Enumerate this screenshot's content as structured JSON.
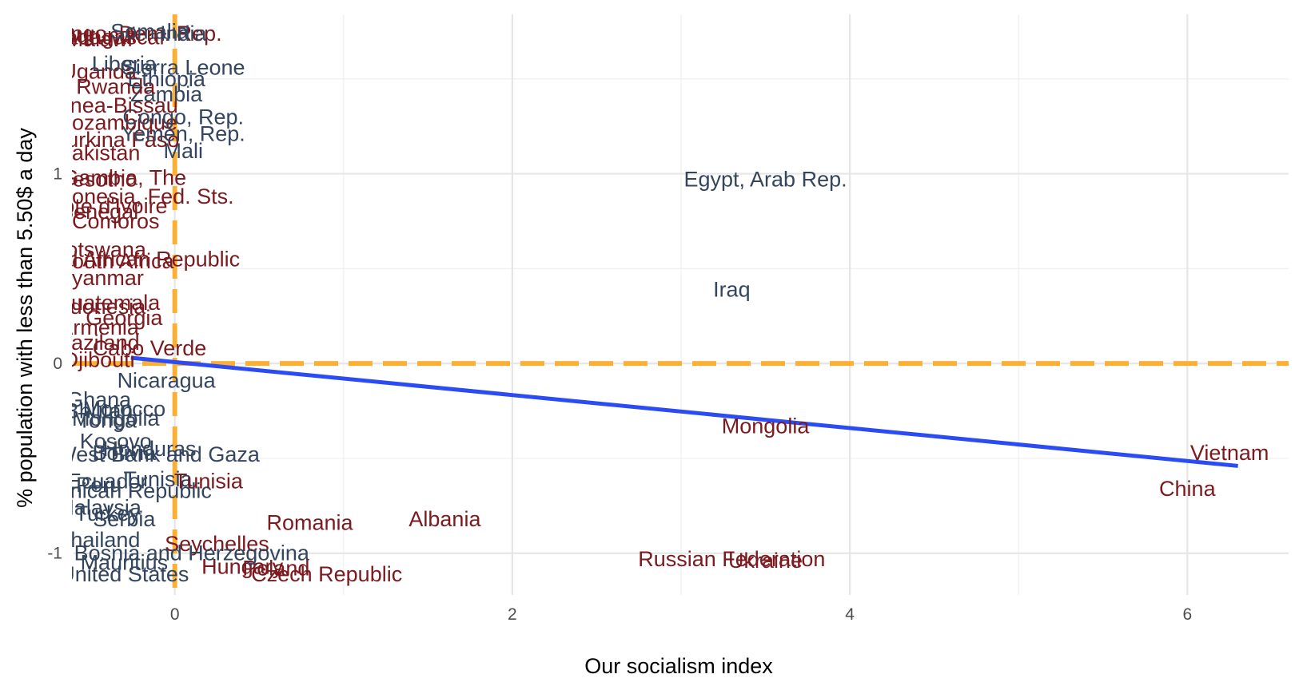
{
  "chart_data": {
    "type": "scatter",
    "title": "",
    "xlabel": "Our socialism index",
    "ylabel": "% population with less than 5.50$ a day",
    "xlim": [
      -0.6,
      6.6
    ],
    "ylim": [
      -1.22,
      1.84
    ],
    "x_ticks": [
      0,
      2,
      4,
      6
    ],
    "y_ticks": [
      -1,
      0,
      1
    ],
    "x_tick_labels": [
      "0",
      "2",
      "4",
      "6"
    ],
    "y_tick_labels": [
      "-1",
      "0",
      "1"
    ],
    "grid": true,
    "legend": "none",
    "colors": {
      "above_poverty_mean": "#7b1a1f",
      "below_poverty_mean": "#34465f",
      "reference_lines": "#fbb034",
      "fit_line": "#2b4cf4"
    },
    "reference_lines": {
      "x": 0,
      "y": 0
    },
    "fit_line": {
      "x": [
        -0.26,
        6.3
      ],
      "y": [
        0.03,
        -0.54
      ]
    },
    "labeled_points": [
      {
        "label": "Egypt, Arab Rep.",
        "x": 3.5,
        "y": 0.97,
        "group": "below"
      },
      {
        "label": "Iraq",
        "x": 3.3,
        "y": 0.39,
        "group": "below"
      },
      {
        "label": "Mongolia",
        "x": 3.5,
        "y": -0.33,
        "group": "above"
      },
      {
        "label": "Vietnam",
        "x": 6.25,
        "y": -0.47,
        "group": "above"
      },
      {
        "label": "China",
        "x": 6.0,
        "y": -0.66,
        "group": "above"
      },
      {
        "label": "Romania",
        "x": 0.8,
        "y": -0.84,
        "group": "above"
      },
      {
        "label": "Albania",
        "x": 1.6,
        "y": -0.82,
        "group": "above"
      },
      {
        "label": "Russian Federation",
        "x": 3.3,
        "y": -1.03,
        "group": "above"
      },
      {
        "label": "Ukraine",
        "x": 3.5,
        "y": -1.04,
        "group": "above"
      },
      {
        "label": "Poland",
        "x": 0.6,
        "y": -1.08,
        "group": "above"
      },
      {
        "label": "Hungary",
        "x": 0.4,
        "y": -1.07,
        "group": "above"
      },
      {
        "label": "Czech Republic",
        "x": 0.9,
        "y": -1.11,
        "group": "above"
      },
      {
        "label": "Seychelles",
        "x": 0.25,
        "y": -0.95,
        "group": "above"
      },
      {
        "label": "Bosnia and Herzegovina",
        "x": 0.1,
        "y": -1.0,
        "group": "below"
      },
      {
        "label": "Serbia",
        "x": -0.3,
        "y": -0.82,
        "group": "below"
      },
      {
        "label": "Thailand",
        "x": -0.45,
        "y": -0.93,
        "group": "below"
      },
      {
        "label": "Mauritius",
        "x": -0.3,
        "y": -1.05,
        "group": "below"
      },
      {
        "label": "United States",
        "x": -0.3,
        "y": -1.11,
        "group": "below"
      },
      {
        "label": "Malaysia",
        "x": -0.45,
        "y": -0.76,
        "group": "below"
      },
      {
        "label": "Turkey",
        "x": -0.4,
        "y": -0.79,
        "group": "below"
      },
      {
        "label": "Ecuador",
        "x": -0.4,
        "y": -0.62,
        "group": "below"
      },
      {
        "label": "Peru",
        "x": -0.45,
        "y": -0.64,
        "group": "below"
      },
      {
        "label": "Tunisia",
        "x": -0.1,
        "y": -0.61,
        "group": "below"
      },
      {
        "label": "Dominican Republic",
        "x": -0.35,
        "y": -0.67,
        "group": "below"
      },
      {
        "label": "Tunisia",
        "x": 0.2,
        "y": -0.62,
        "group": "above"
      },
      {
        "label": "Bolivia",
        "x": -0.3,
        "y": -0.47,
        "group": "below"
      },
      {
        "label": "West Bank and Gaza",
        "x": -0.1,
        "y": -0.48,
        "group": "below"
      },
      {
        "label": "Honduras",
        "x": -0.15,
        "y": -0.45,
        "group": "below"
      },
      {
        "label": "Kosovo",
        "x": -0.35,
        "y": -0.41,
        "group": "below"
      },
      {
        "label": "Mongolia",
        "x": -0.35,
        "y": -0.29,
        "group": "below"
      },
      {
        "label": "Tonga",
        "x": -0.4,
        "y": -0.3,
        "group": "below"
      },
      {
        "label": "Ghana",
        "x": -0.45,
        "y": -0.19,
        "group": "below"
      },
      {
        "label": "Morocco",
        "x": -0.3,
        "y": -0.24,
        "group": "below"
      },
      {
        "label": "Bhutan",
        "x": -0.45,
        "y": -0.25,
        "group": "below"
      },
      {
        "label": "Nicaragua",
        "x": -0.05,
        "y": -0.09,
        "group": "below"
      },
      {
        "label": "Djibouti",
        "x": -0.45,
        "y": 0.02,
        "group": "above"
      },
      {
        "label": "Cabo Verde",
        "x": -0.15,
        "y": 0.08,
        "group": "above"
      },
      {
        "label": "Swaziland",
        "x": -0.5,
        "y": 0.11,
        "group": "above"
      },
      {
        "label": "Armenia",
        "x": -0.45,
        "y": 0.19,
        "group": "above"
      },
      {
        "label": "Georgia",
        "x": -0.3,
        "y": 0.24,
        "group": "above"
      },
      {
        "label": "Indonesia",
        "x": -0.45,
        "y": 0.3,
        "group": "above"
      },
      {
        "label": "Guatemala",
        "x": -0.4,
        "y": 0.32,
        "group": "above"
      },
      {
        "label": "Myanmar",
        "x": -0.45,
        "y": 0.45,
        "group": "above"
      },
      {
        "label": "Central African Republic",
        "x": -0.3,
        "y": 0.55,
        "group": "above"
      },
      {
        "label": "South Africa",
        "x": -0.35,
        "y": 0.54,
        "group": "above"
      },
      {
        "label": "Botswana",
        "x": -0.45,
        "y": 0.6,
        "group": "above"
      },
      {
        "label": "Comoros",
        "x": -0.35,
        "y": 0.75,
        "group": "above"
      },
      {
        "label": "Senegal",
        "x": -0.45,
        "y": 0.8,
        "group": "above"
      },
      {
        "label": "Cote d'Ivoire",
        "x": -0.4,
        "y": 0.83,
        "group": "above"
      },
      {
        "label": "Micronesia, Fed. Sts.",
        "x": -0.25,
        "y": 0.88,
        "group": "above"
      },
      {
        "label": "Lesotho",
        "x": -0.45,
        "y": 0.97,
        "group": "above"
      },
      {
        "label": "Gambia, The",
        "x": -0.3,
        "y": 0.98,
        "group": "above"
      },
      {
        "label": "Pakistan",
        "x": -0.45,
        "y": 1.11,
        "group": "above"
      },
      {
        "label": "Mali",
        "x": 0.05,
        "y": 1.12,
        "group": "below"
      },
      {
        "label": "Burkina Faso",
        "x": -0.35,
        "y": 1.18,
        "group": "above"
      },
      {
        "label": "Yemen, Rep.",
        "x": 0.05,
        "y": 1.21,
        "group": "below"
      },
      {
        "label": "Mozambique",
        "x": -0.35,
        "y": 1.27,
        "group": "above"
      },
      {
        "label": "Congo, Rep.",
        "x": 0.05,
        "y": 1.3,
        "group": "below"
      },
      {
        "label": "Guinea-Bissau",
        "x": -0.4,
        "y": 1.36,
        "group": "above"
      },
      {
        "label": "Zambia",
        "x": -0.05,
        "y": 1.42,
        "group": "below"
      },
      {
        "label": "Rwanda",
        "x": -0.35,
        "y": 1.46,
        "group": "above"
      },
      {
        "label": "Ethiopia",
        "x": -0.05,
        "y": 1.5,
        "group": "below"
      },
      {
        "label": "Uganda",
        "x": -0.45,
        "y": 1.54,
        "group": "above"
      },
      {
        "label": "Sierra Leone",
        "x": 0.05,
        "y": 1.56,
        "group": "below"
      },
      {
        "label": "Liberia",
        "x": -0.3,
        "y": 1.58,
        "group": "below"
      },
      {
        "label": "Malawi",
        "x": -0.45,
        "y": 1.71,
        "group": "above"
      },
      {
        "label": "Burundi",
        "x": -0.45,
        "y": 1.73,
        "group": "above"
      },
      {
        "label": "Madagascar",
        "x": -0.4,
        "y": 1.72,
        "group": "above"
      },
      {
        "label": "Congo, Dem. Rep.",
        "x": -0.25,
        "y": 1.74,
        "group": "above"
      },
      {
        "label": "Somalia",
        "x": -0.15,
        "y": 1.75,
        "group": "below"
      },
      {
        "label": "India",
        "x": 0.05,
        "y": 1.74,
        "group": "below"
      }
    ]
  }
}
